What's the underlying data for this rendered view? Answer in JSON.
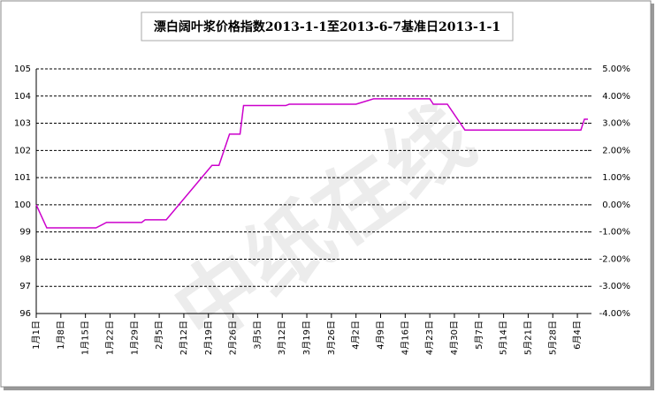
{
  "chart_data": {
    "type": "line",
    "title": "漂白阔叶浆价格指数2013-1-1至2013-6-7基准日2013-1-1",
    "watermark": "中纸在线",
    "xlim": [
      0,
      157
    ],
    "xticks": [
      {
        "value": 0,
        "label": "1月1日"
      },
      {
        "value": 7,
        "label": "1月8日"
      },
      {
        "value": 14,
        "label": "1月15日"
      },
      {
        "value": 21,
        "label": "1月22日"
      },
      {
        "value": 28,
        "label": "1月29日"
      },
      {
        "value": 35,
        "label": "2月5日"
      },
      {
        "value": 42,
        "label": "2月12日"
      },
      {
        "value": 49,
        "label": "2月19日"
      },
      {
        "value": 56,
        "label": "2月26日"
      },
      {
        "value": 63,
        "label": "3月5日"
      },
      {
        "value": 70,
        "label": "3月12日"
      },
      {
        "value": 77,
        "label": "3月19日"
      },
      {
        "value": 84,
        "label": "3月26日"
      },
      {
        "value": 91,
        "label": "4月2日"
      },
      {
        "value": 98,
        "label": "4月9日"
      },
      {
        "value": 105,
        "label": "4月16日"
      },
      {
        "value": 112,
        "label": "4月23日"
      },
      {
        "value": 119,
        "label": "4月30日"
      },
      {
        "value": 126,
        "label": "5月7日"
      },
      {
        "value": 133,
        "label": "5月14日"
      },
      {
        "value": 140,
        "label": "5月21日"
      },
      {
        "value": 147,
        "label": "5月28日"
      },
      {
        "value": 154,
        "label": "6月4日"
      }
    ],
    "ylim": [
      96,
      105
    ],
    "yticks": [
      96,
      97,
      98,
      99,
      100,
      101,
      102,
      103,
      104,
      105
    ],
    "y2lim": [
      -4,
      5
    ],
    "y2ticks": [
      {
        "value": -4,
        "label": "-4.00%"
      },
      {
        "value": -3,
        "label": "-3.00%"
      },
      {
        "value": -2,
        "label": "-2.00%"
      },
      {
        "value": -1,
        "label": "-1.00%"
      },
      {
        "value": 0,
        "label": "0.00%"
      },
      {
        "value": 1,
        "label": "1.00%"
      },
      {
        "value": 2,
        "label": "2.00%"
      },
      {
        "value": 3,
        "label": "3.00%"
      },
      {
        "value": 4,
        "label": "4.00%"
      },
      {
        "value": 5,
        "label": "5.00%"
      }
    ],
    "grid": true,
    "series": [
      {
        "color": "#cc00cc",
        "x": [
          0,
          3,
          17,
          20,
          30,
          31,
          37,
          50,
          52,
          55,
          58,
          59,
          71,
          72,
          91,
          96,
          112,
          113,
          117,
          122,
          155,
          156,
          157
        ],
        "values": [
          100,
          99.15,
          99.15,
          99.35,
          99.35,
          99.45,
          99.45,
          101.45,
          101.45,
          102.6,
          102.6,
          103.65,
          103.65,
          103.7,
          103.7,
          103.9,
          103.9,
          103.7,
          103.7,
          102.75,
          102.75,
          103.15,
          103.15
        ]
      }
    ]
  }
}
